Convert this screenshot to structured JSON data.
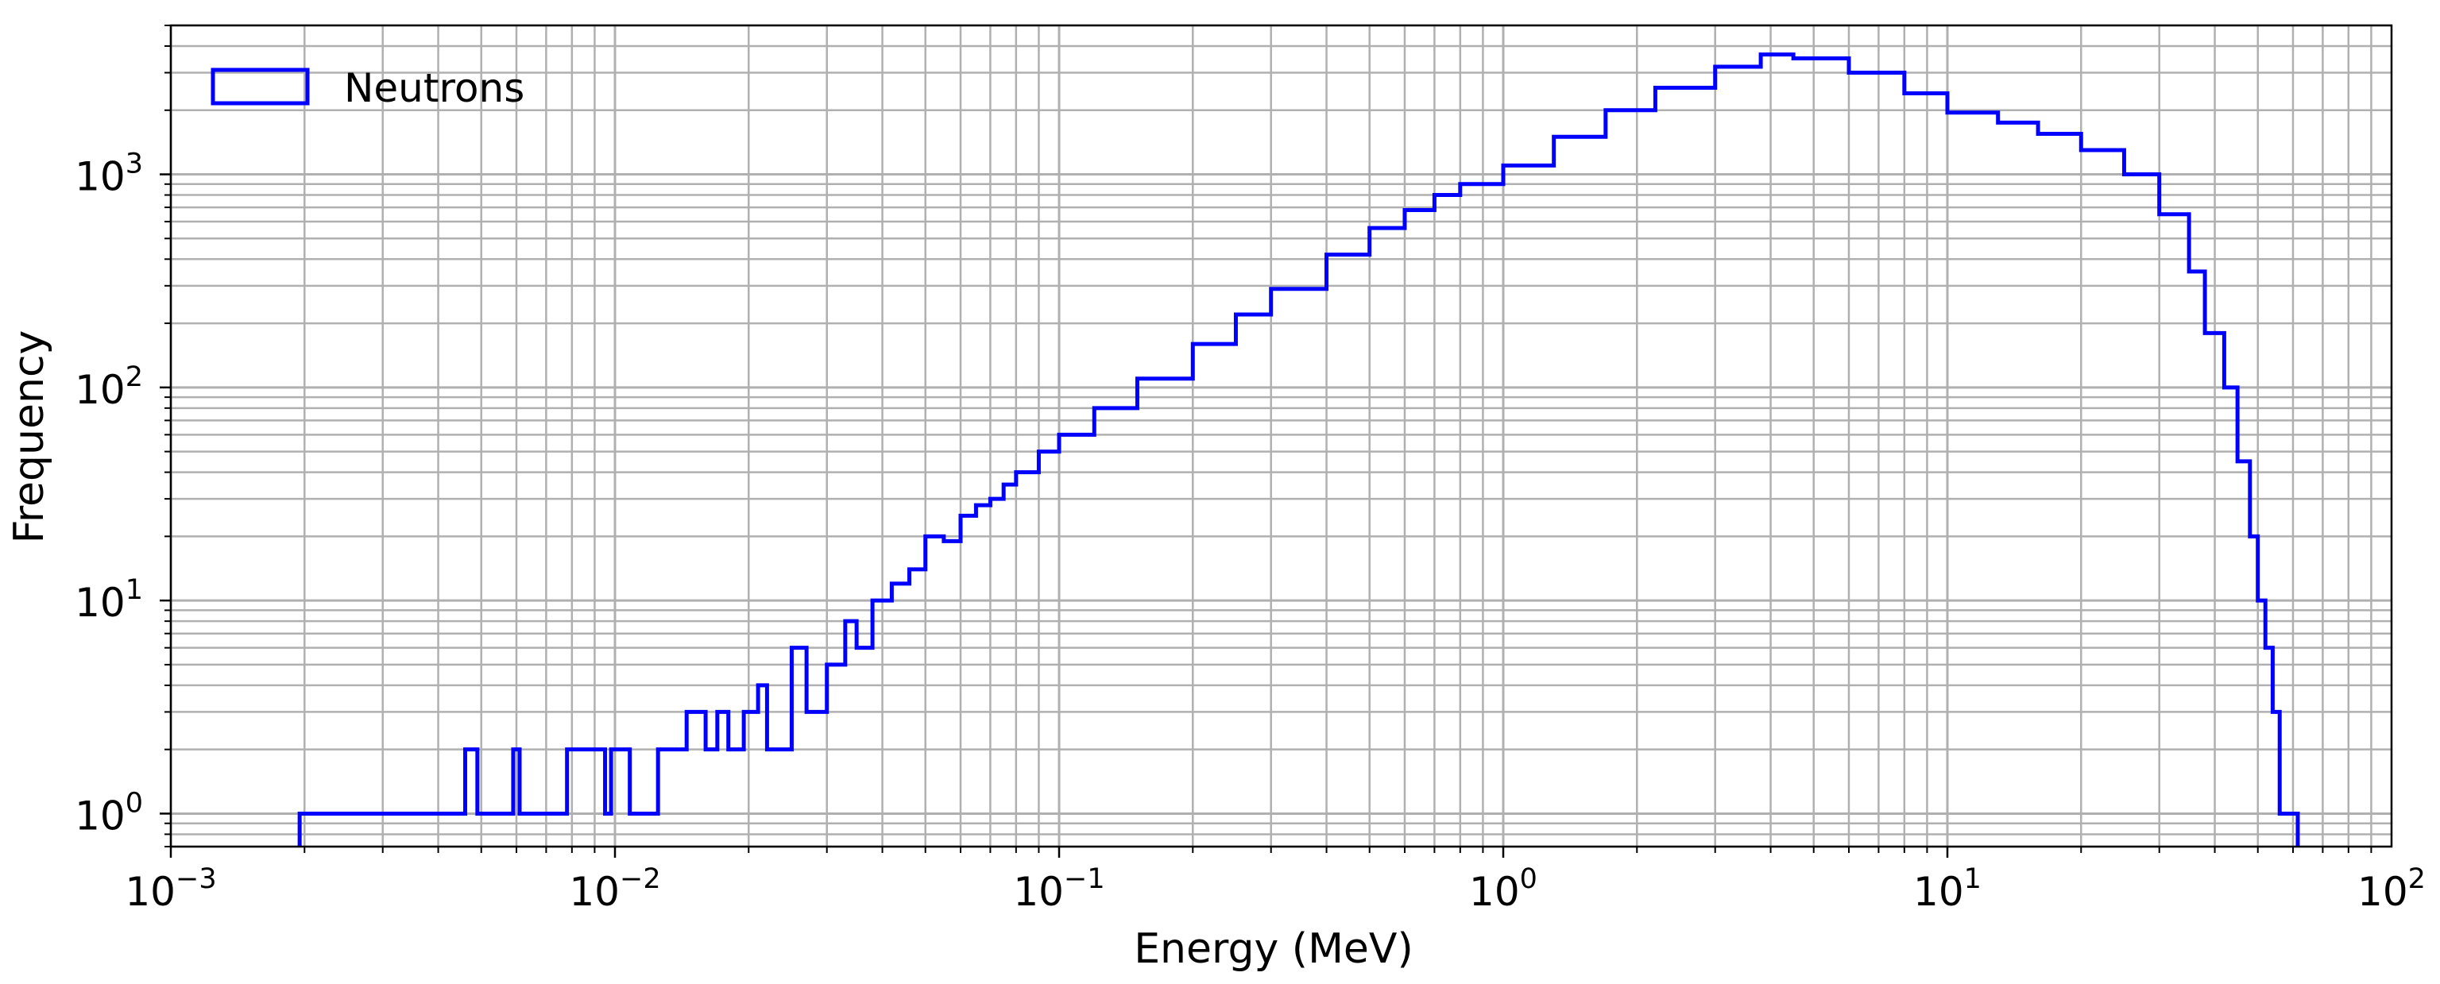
{
  "chart_data": {
    "type": "histogram",
    "title": "",
    "xlabel": "Energy (MeV)",
    "ylabel": "Frequency",
    "xscale": "log",
    "yscale": "log",
    "xlim": [
      0.001,
      100
    ],
    "ylim": [
      0.7,
      5000
    ],
    "grid": "major and minor",
    "legend": {
      "placement": "top-left",
      "entries": [
        "Neutrons"
      ]
    },
    "x_ticks": [
      {
        "base": "10",
        "exp": "−3",
        "value": 0.001
      },
      {
        "base": "10",
        "exp": "−2",
        "value": 0.01
      },
      {
        "base": "10",
        "exp": "−1",
        "value": 0.1
      },
      {
        "base": "10",
        "exp": "0",
        "value": 1
      },
      {
        "base": "10",
        "exp": "1",
        "value": 10
      },
      {
        "base": "10",
        "exp": "2",
        "value": 100
      }
    ],
    "y_ticks": [
      {
        "base": "10",
        "exp": "0",
        "value": 1
      },
      {
        "base": "10",
        "exp": "1",
        "value": 10
      },
      {
        "base": "10",
        "exp": "2",
        "value": 100
      },
      {
        "base": "10",
        "exp": "3",
        "value": 1000
      }
    ],
    "series": [
      {
        "name": "Neutrons",
        "color": "#0000ff",
        "style": "step",
        "points": [
          [
            0.00195,
            1
          ],
          [
            0.0031,
            1
          ],
          [
            0.0039,
            1
          ],
          [
            0.0046,
            2
          ],
          [
            0.0049,
            1
          ],
          [
            0.0059,
            2
          ],
          [
            0.0061,
            1
          ],
          [
            0.0068,
            1
          ],
          [
            0.0071,
            1
          ],
          [
            0.0078,
            2
          ],
          [
            0.0088,
            2
          ],
          [
            0.0095,
            1
          ],
          [
            0.0098,
            2
          ],
          [
            0.0108,
            1
          ],
          [
            0.0115,
            1
          ],
          [
            0.0125,
            2
          ],
          [
            0.013,
            2
          ],
          [
            0.0145,
            3
          ],
          [
            0.015,
            3
          ],
          [
            0.016,
            2
          ],
          [
            0.017,
            3
          ],
          [
            0.018,
            2
          ],
          [
            0.0195,
            3
          ],
          [
            0.021,
            4
          ],
          [
            0.022,
            2
          ],
          [
            0.025,
            6
          ],
          [
            0.027,
            3
          ],
          [
            0.03,
            5
          ],
          [
            0.033,
            8
          ],
          [
            0.035,
            6
          ],
          [
            0.038,
            10
          ],
          [
            0.042,
            12
          ],
          [
            0.046,
            14
          ],
          [
            0.05,
            20
          ],
          [
            0.055,
            19
          ],
          [
            0.06,
            25
          ],
          [
            0.065,
            28
          ],
          [
            0.07,
            30
          ],
          [
            0.075,
            35
          ],
          [
            0.08,
            40
          ],
          [
            0.09,
            50
          ],
          [
            0.1,
            60
          ],
          [
            0.12,
            80
          ],
          [
            0.15,
            110
          ],
          [
            0.2,
            160
          ],
          [
            0.25,
            220
          ],
          [
            0.3,
            290
          ],
          [
            0.4,
            420
          ],
          [
            0.5,
            560
          ],
          [
            0.6,
            680
          ],
          [
            0.7,
            800
          ],
          [
            0.8,
            900
          ],
          [
            1,
            1100
          ],
          [
            1.3,
            1500
          ],
          [
            1.7,
            2000
          ],
          [
            2.2,
            2550
          ],
          [
            3,
            3200
          ],
          [
            3.8,
            3650
          ],
          [
            4.5,
            3500
          ],
          [
            6,
            3000
          ],
          [
            8,
            2400
          ],
          [
            10,
            1950
          ],
          [
            13,
            1750
          ],
          [
            16,
            1550
          ],
          [
            20,
            1300
          ],
          [
            25,
            1000
          ],
          [
            30,
            650
          ],
          [
            35,
            350
          ],
          [
            38,
            180
          ],
          [
            42,
            100
          ],
          [
            45,
            45
          ],
          [
            48,
            20
          ],
          [
            50,
            10
          ],
          [
            52,
            6
          ],
          [
            54,
            3
          ],
          [
            56,
            1
          ],
          [
            60,
            1
          ]
        ]
      }
    ]
  }
}
